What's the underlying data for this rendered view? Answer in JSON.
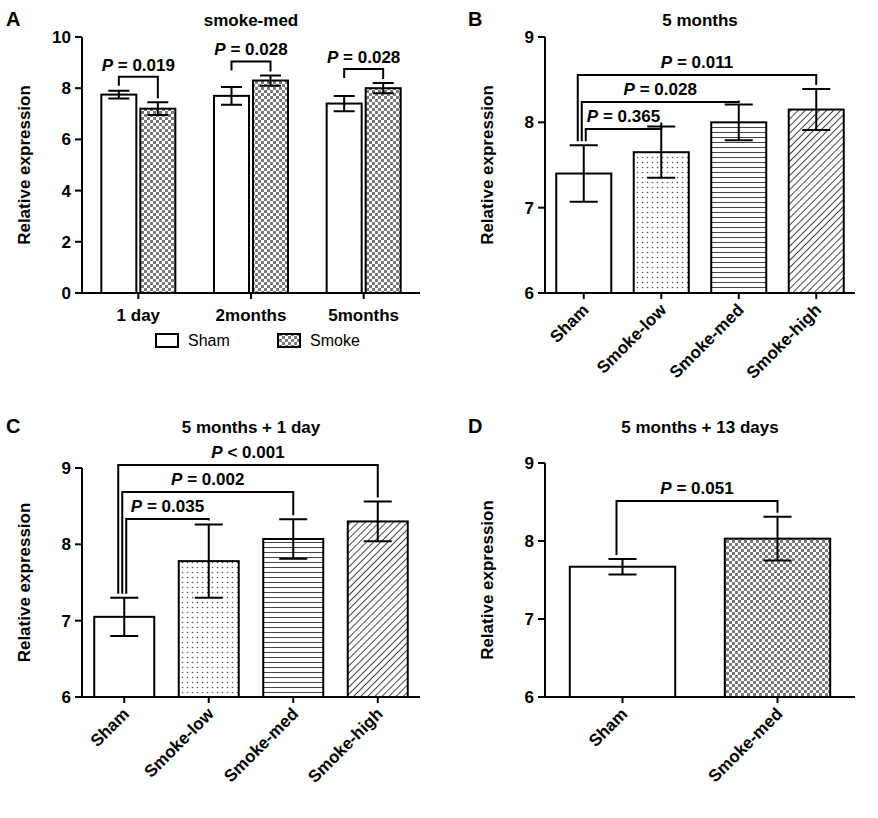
{
  "chart_data": [
    {
      "panel": "A",
      "type": "bar",
      "title": "smoke-med",
      "ylabel": "Relative expression",
      "categories": [
        "1 day",
        "2months",
        "5months"
      ],
      "series": [
        {
          "name": "Sham",
          "color": "#ffffff",
          "values": [
            7.75,
            7.7,
            7.4
          ],
          "errors": [
            0.15,
            0.35,
            0.3
          ]
        },
        {
          "name": "Smoke",
          "color": "#9a9a9a",
          "values": [
            7.2,
            8.3,
            8.0
          ],
          "errors": [
            0.25,
            0.2,
            0.2
          ]
        }
      ],
      "ylim": [
        0,
        10
      ],
      "yticks": [
        0,
        2,
        4,
        6,
        8,
        10
      ],
      "legend": "bottom",
      "comparisons": [
        {
          "category": 0,
          "label": "P = 0.019"
        },
        {
          "category": 1,
          "label": "P = 0.028"
        },
        {
          "category": 2,
          "label": "P = 0.028"
        }
      ]
    },
    {
      "panel": "B",
      "type": "bar",
      "title": "5 months",
      "ylabel": "Relative expression",
      "categories": [
        "Sham",
        "Smoke-low",
        "Smoke-med",
        "Smoke-high"
      ],
      "values": [
        7.4,
        7.65,
        8.0,
        8.15
      ],
      "errors": [
        0.33,
        0.3,
        0.21,
        0.24
      ],
      "ylim": [
        6,
        9
      ],
      "yticks": [
        6,
        7,
        8,
        9
      ],
      "comparisons": [
        {
          "from": 0,
          "to": 1,
          "label": "P = 0.365"
        },
        {
          "from": 0,
          "to": 2,
          "label": "P = 0.028"
        },
        {
          "from": 0,
          "to": 3,
          "label": "P = 0.011"
        }
      ]
    },
    {
      "panel": "C",
      "type": "bar",
      "title": "5 months + 1 day",
      "ylabel": "Relative expression",
      "categories": [
        "Sham",
        "Smoke-low",
        "Smoke-med",
        "Smoke-high"
      ],
      "values": [
        7.05,
        7.78,
        8.07,
        8.3
      ],
      "errors": [
        0.25,
        0.48,
        0.26,
        0.26
      ],
      "ylim": [
        6,
        9
      ],
      "yticks": [
        6,
        7,
        8,
        9
      ],
      "comparisons": [
        {
          "from": 0,
          "to": 1,
          "label": "P = 0.035"
        },
        {
          "from": 0,
          "to": 2,
          "label": "P = 0.002"
        },
        {
          "from": 0,
          "to": 3,
          "label": "P < 0.001"
        }
      ]
    },
    {
      "panel": "D",
      "type": "bar",
      "title": "5 months + 13 days",
      "ylabel": "Relative expression",
      "categories": [
        "Sham",
        "Smoke-med"
      ],
      "values": [
        7.67,
        8.03
      ],
      "errors": [
        0.1,
        0.28
      ],
      "ylim": [
        6,
        9
      ],
      "yticks": [
        6,
        7,
        8,
        9
      ],
      "comparisons": [
        {
          "from": 0,
          "to": 1,
          "label": "P = 0.051"
        }
      ]
    }
  ]
}
